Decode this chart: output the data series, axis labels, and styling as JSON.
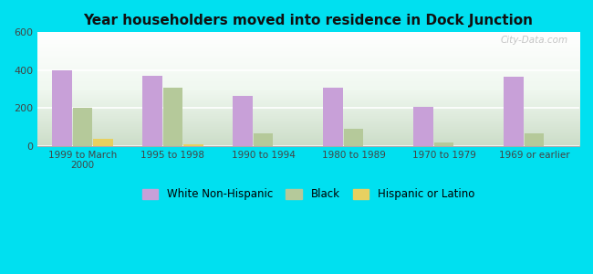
{
  "title": "Year householders moved into residence in Dock Junction",
  "categories": [
    "1999 to March\n2000",
    "1995 to 1998",
    "1990 to 1994",
    "1980 to 1989",
    "1970 to 1979",
    "1969 or earlier"
  ],
  "white_non_hispanic": [
    400,
    370,
    265,
    305,
    205,
    365
  ],
  "black": [
    200,
    305,
    65,
    90,
    20,
    65
  ],
  "hispanic_or_latino": [
    35,
    10,
    0,
    0,
    0,
    0
  ],
  "bar_colors": {
    "white": "#c8a0d8",
    "black": "#b5c99a",
    "hispanic": "#e8d060"
  },
  "background_outer": "#00e0f0",
  "ylim": [
    0,
    600
  ],
  "yticks": [
    0,
    200,
    400,
    600
  ],
  "watermark": "City-Data.com",
  "legend_labels": [
    "White Non-Hispanic",
    "Black",
    "Hispanic or Latino"
  ]
}
